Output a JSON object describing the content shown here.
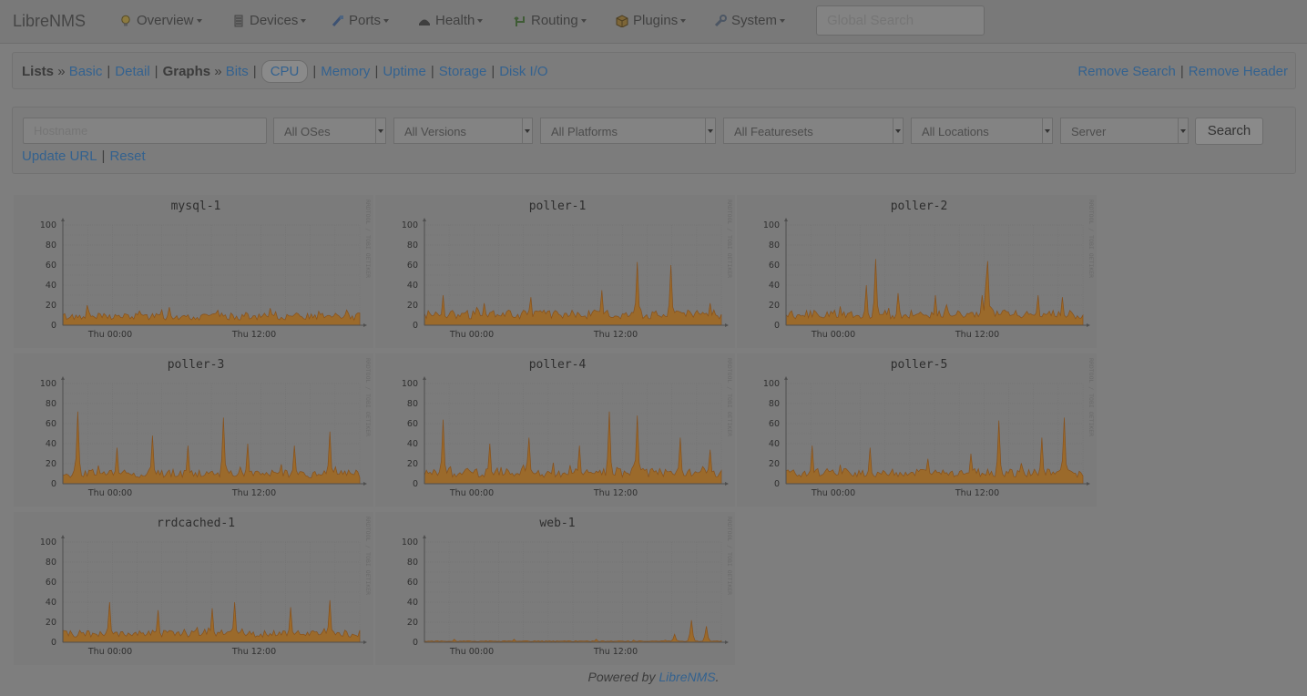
{
  "app": {
    "brand": "LibreNMS"
  },
  "nav": {
    "items": [
      {
        "label": "Overview",
        "icon": "lightbulb-icon"
      },
      {
        "label": "Devices",
        "icon": "server-icon"
      },
      {
        "label": "Ports",
        "icon": "network-cable-icon"
      },
      {
        "label": "Health",
        "icon": "heart-monitor-icon"
      },
      {
        "label": "Routing",
        "icon": "arrows-routing-icon"
      },
      {
        "label": "Plugins",
        "icon": "package-icon"
      },
      {
        "label": "System",
        "icon": "wrench-icon"
      }
    ],
    "search_placeholder": "Global Search"
  },
  "submenu": {
    "lists_label": "Lists",
    "basic": "Basic",
    "detail": "Detail",
    "graphs_label": "Graphs",
    "bits": "Bits",
    "cpu": "CPU",
    "memory": "Memory",
    "uptime": "Uptime",
    "storage": "Storage",
    "diskio": "Disk I/O",
    "raquo": "»",
    "pipe": "|",
    "remove_search": "Remove Search",
    "remove_header": "Remove Header"
  },
  "filters": {
    "hostname_placeholder": "Hostname",
    "os": "All OSes",
    "versions": "All Versions",
    "platforms": "All Platforms",
    "featuresets": "All Featuresets",
    "locations": "All Locations",
    "type": "Server",
    "search_button": "Search",
    "update_url": "Update URL",
    "reset": "Reset"
  },
  "graph_common": {
    "y_ticks": [
      "0",
      "20",
      "40",
      "60",
      "80",
      "100"
    ],
    "x_ticks": [
      "Thu 00:00",
      "Thu 12:00"
    ],
    "watermark": "RRDTOOL / TOBI OETIKER",
    "fill_color": "#9b6a2b",
    "line_color": "#87511c"
  },
  "graphs": [
    {
      "host": "mysql-1",
      "base": 8,
      "spikes": [
        [
          0.08,
          20
        ],
        [
          0.36,
          18
        ],
        [
          0.52,
          15
        ],
        [
          0.7,
          17
        ],
        [
          0.86,
          14
        ]
      ]
    },
    {
      "host": "poller-1",
      "base": 10,
      "spikes": [
        [
          0.06,
          30
        ],
        [
          0.2,
          22
        ],
        [
          0.36,
          28
        ],
        [
          0.6,
          35
        ],
        [
          0.72,
          63
        ],
        [
          0.83,
          60
        ],
        [
          0.96,
          22
        ]
      ]
    },
    {
      "host": "poller-2",
      "base": 10,
      "spikes": [
        [
          0.27,
          40
        ],
        [
          0.3,
          66
        ],
        [
          0.38,
          32
        ],
        [
          0.5,
          30
        ],
        [
          0.66,
          30
        ],
        [
          0.67,
          42
        ],
        [
          0.68,
          64
        ],
        [
          0.85,
          30
        ],
        [
          0.93,
          28
        ]
      ]
    },
    {
      "host": "poller-3",
      "base": 9,
      "spikes": [
        [
          0.05,
          72
        ],
        [
          0.18,
          36
        ],
        [
          0.3,
          48
        ],
        [
          0.42,
          38
        ],
        [
          0.54,
          66
        ],
        [
          0.62,
          40
        ],
        [
          0.78,
          38
        ],
        [
          0.9,
          52
        ]
      ]
    },
    {
      "host": "poller-4",
      "base": 10,
      "spikes": [
        [
          0.06,
          64
        ],
        [
          0.22,
          40
        ],
        [
          0.35,
          46
        ],
        [
          0.52,
          38
        ],
        [
          0.62,
          72
        ],
        [
          0.72,
          68
        ],
        [
          0.86,
          46
        ],
        [
          0.96,
          34
        ]
      ]
    },
    {
      "host": "poller-5",
      "base": 10,
      "spikes": [
        [
          0.09,
          38
        ],
        [
          0.28,
          36
        ],
        [
          0.48,
          25
        ],
        [
          0.62,
          30
        ],
        [
          0.72,
          63
        ],
        [
          0.86,
          46
        ],
        [
          0.94,
          66
        ]
      ]
    },
    {
      "host": "rrdcached-1",
      "base": 8,
      "spikes": [
        [
          0.16,
          40
        ],
        [
          0.32,
          32
        ],
        [
          0.5,
          34
        ],
        [
          0.58,
          40
        ],
        [
          0.77,
          35
        ],
        [
          0.9,
          42
        ]
      ]
    },
    {
      "host": "web-1",
      "base": 1,
      "spikes": [
        [
          0.1,
          3
        ],
        [
          0.3,
          3
        ],
        [
          0.58,
          3
        ],
        [
          0.84,
          8
        ],
        [
          0.9,
          22
        ],
        [
          0.95,
          16
        ]
      ]
    }
  ],
  "footer": {
    "powered_by": "Powered by",
    "link": "LibreNMS",
    "dot": "."
  }
}
